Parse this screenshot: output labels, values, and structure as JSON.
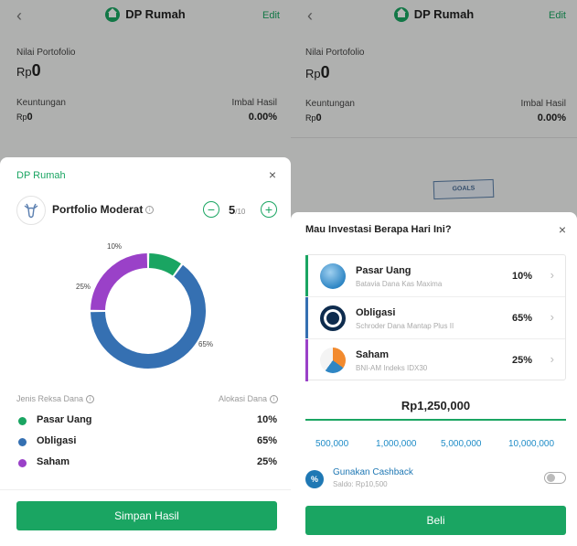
{
  "left": {
    "header": {
      "back_icon": "‹",
      "title": "DP Rumah",
      "edit_label": "Edit"
    },
    "portfolio": {
      "value_label": "Nilai Portofolio",
      "currency": "Rp",
      "value": "0",
      "profit_label": "Keuntungan",
      "profit_currency": "Rp",
      "profit_value": "0",
      "return_label": "Imbal Hasil",
      "return_value": "0.00%"
    },
    "sheet": {
      "title": "DP Rumah",
      "close_icon": "×",
      "portfolio_name": "Portfolio Moderat",
      "info_icon": "i",
      "minus_icon": "−",
      "plus_icon": "+",
      "score": "5",
      "score_max": "/10",
      "donut": [
        {
          "label": "10%",
          "value": 10,
          "color": "#1aa562"
        },
        {
          "label": "65%",
          "value": 65,
          "color": "#3570b2"
        },
        {
          "label": "25%",
          "value": 25,
          "color": "#9a41c8"
        }
      ],
      "col_left": "Jenis Reksa Dana",
      "col_right": "Alokasi Dana",
      "rows": [
        {
          "name": "Pasar Uang",
          "pct": "10%",
          "color": "#1aa562"
        },
        {
          "name": "Obligasi",
          "pct": "65%",
          "color": "#3570b2"
        },
        {
          "name": "Saham",
          "pct": "25%",
          "color": "#9a41c8"
        }
      ],
      "save_button": "Simpan Hasil"
    }
  },
  "right": {
    "header": {
      "back_icon": "‹",
      "title": "DP Rumah",
      "edit_label": "Edit"
    },
    "portfolio": {
      "value_label": "Nilai Portofolio",
      "currency": "Rp",
      "value": "0",
      "profit_label": "Keuntungan",
      "profit_currency": "Rp",
      "profit_value": "0",
      "return_label": "Imbal Hasil",
      "return_value": "0.00%"
    },
    "goals_label": "GOALS",
    "sheet": {
      "title": "Mau Investasi Berapa Hari Ini?",
      "close_icon": "×",
      "funds": [
        {
          "name": "Pasar Uang",
          "sub": "Batavia Dana Kas Maxima",
          "pct": "10%",
          "color": "#1aa562"
        },
        {
          "name": "Obligasi",
          "sub": "Schroder Dana Mantap Plus II",
          "pct": "65%",
          "color": "#3570b2"
        },
        {
          "name": "Saham",
          "sub": "BNI-AM Indeks IDX30",
          "pct": "25%",
          "color": "#9a41c8"
        }
      ],
      "chevron": "›",
      "amount": "Rp1,250,000",
      "options": [
        "500,000",
        "1,000,000",
        "5,000,000",
        "10,000,000"
      ],
      "cashback_icon": "%",
      "cashback_title": "Gunakan Cashback",
      "cashback_sub": "Saldo: Rp10,500",
      "buy_button": "Beli"
    }
  }
}
